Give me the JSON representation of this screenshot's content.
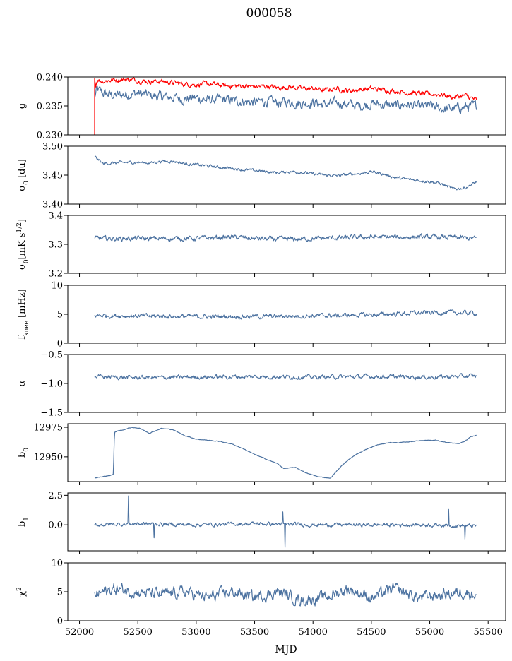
{
  "title": "000058",
  "colors": {
    "main": "#4c72a0",
    "secondary": "#ff0000"
  },
  "chart_data": {
    "type": "line",
    "title": "000058",
    "xlabel": "MJD",
    "xlim": [
      51900,
      55650
    ],
    "xticks": [
      52000,
      52500,
      53000,
      53500,
      54000,
      54500,
      55000,
      55500
    ],
    "xtick_labels": [
      "52000",
      "52500",
      "53000",
      "53500",
      "54000",
      "54500",
      "55000",
      "55500"
    ],
    "x_start": 52130,
    "x_end": 55400,
    "panels": [
      {
        "ylabel": "g",
        "ylim": [
          0.23,
          0.24
        ],
        "yticks": [
          0.23,
          0.235,
          0.24
        ],
        "ytick_labels": [
          "0.230",
          "0.235",
          "0.240"
        ],
        "series": [
          {
            "color": "#4c72a0",
            "x": [
              52130,
              52150,
              52200,
              52300,
              52400,
              52500,
              52600,
              52700,
              52800,
              52900,
              53000,
              53100,
              53200,
              53300,
              53400,
              53500,
              53600,
              53700,
              53800,
              53900,
              54000,
              54100,
              54200,
              54300,
              54400,
              54500,
              54600,
              54700,
              54800,
              54900,
              55000,
              55100,
              55200,
              55300,
              55400
            ],
            "y": [
              0.2365,
              0.2378,
              0.2372,
              0.2368,
              0.237,
              0.2372,
              0.2368,
              0.2366,
              0.2365,
              0.2362,
              0.2364,
              0.236,
              0.2361,
              0.2359,
              0.2358,
              0.2356,
              0.2358,
              0.2355,
              0.2357,
              0.2354,
              0.2356,
              0.2352,
              0.2355,
              0.2353,
              0.235,
              0.2354,
              0.2352,
              0.235,
              0.2353,
              0.2348,
              0.235,
              0.2345,
              0.2345,
              0.2348,
              0.235
            ],
            "noise": 0.0012
          },
          {
            "color": "#ff0000",
            "x": [
              52130,
              52140,
              52150,
              52200,
              52300,
              52400,
              52500,
              52600,
              52700,
              52800,
              52900,
              53000,
              53100,
              53200,
              53300,
              53400,
              53500,
              53600,
              53700,
              53800,
              53900,
              54000,
              54100,
              54200,
              54300,
              54400,
              54500,
              54600,
              54700,
              54800,
              54900,
              55000,
              55100,
              55200,
              55300,
              55400
            ],
            "y": [
              0.2395,
              0.2385,
              0.2395,
              0.2393,
              0.2395,
              0.2396,
              0.2394,
              0.2392,
              0.2393,
              0.239,
              0.2388,
              0.2387,
              0.2388,
              0.2386,
              0.2384,
              0.2385,
              0.2383,
              0.2384,
              0.2381,
              0.2383,
              0.238,
              0.238,
              0.2377,
              0.238,
              0.2376,
              0.2378,
              0.238,
              0.2378,
              0.2376,
              0.2373,
              0.2372,
              0.237,
              0.237,
              0.2365,
              0.2368,
              0.236
            ],
            "noise": 0.0006
          }
        ]
      },
      {
        "ylabel": "σ0 [du]",
        "ylim": [
          3.4,
          3.5
        ],
        "yticks": [
          3.4,
          3.45,
          3.5
        ],
        "ytick_labels": [
          "3.40",
          "3.45",
          "3.50"
        ],
        "series": [
          {
            "color": "#4c72a0",
            "x": [
              52130,
              52200,
              52300,
              52400,
              52500,
              52600,
              52700,
              52800,
              52900,
              53000,
              53100,
              53200,
              53300,
              53400,
              53500,
              53600,
              53700,
              53800,
              53900,
              54000,
              54100,
              54200,
              54300,
              54400,
              54500,
              54600,
              54700,
              54800,
              54900,
              55000,
              55100,
              55200,
              55300,
              55400
            ],
            "y": [
              3.482,
              3.47,
              3.471,
              3.472,
              3.472,
              3.471,
              3.474,
              3.474,
              3.47,
              3.468,
              3.466,
              3.463,
              3.462,
              3.459,
              3.458,
              3.456,
              3.454,
              3.456,
              3.455,
              3.452,
              3.45,
              3.449,
              3.451,
              3.453,
              3.456,
              3.452,
              3.446,
              3.443,
              3.441,
              3.439,
              3.435,
              3.426,
              3.428,
              3.438
            ],
            "noise": 0.0035
          }
        ]
      },
      {
        "ylabel": "σ0[mK s^1/2]",
        "ylim": [
          3.2,
          3.4
        ],
        "yticks": [
          3.2,
          3.3,
          3.4
        ],
        "ytick_labels": [
          "3.2",
          "3.3",
          "3.4"
        ],
        "series": [
          {
            "color": "#4c72a0",
            "x": [
              52130,
              52400,
              52700,
              53000,
              53300,
              53600,
              53900,
              54200,
              54500,
              54800,
              55100,
              55400
            ],
            "y": [
              3.32,
              3.32,
              3.32,
              3.32,
              3.325,
              3.318,
              3.318,
              3.322,
              3.325,
              3.325,
              3.325,
              3.32
            ],
            "noise": 0.012
          }
        ]
      },
      {
        "ylabel": "f_knee [mHz]",
        "ylim": [
          0,
          10
        ],
        "yticks": [
          0,
          5,
          10
        ],
        "ytick_labels": [
          "0",
          "5",
          "10"
        ],
        "series": [
          {
            "color": "#4c72a0",
            "x": [
              52130,
              52500,
              53000,
              53500,
              54000,
              54500,
              55000,
              55400
            ],
            "y": [
              4.8,
              4.7,
              4.6,
              4.6,
              4.7,
              4.9,
              5.3,
              5.2
            ],
            "noise": 0.55
          }
        ]
      },
      {
        "ylabel": "α",
        "ylim": [
          -1.5,
          -0.5
        ],
        "yticks": [
          -1.5,
          -1.0,
          -0.5
        ],
        "ytick_labels": [
          "−1.5",
          "−1.0",
          "−0.5"
        ],
        "series": [
          {
            "color": "#4c72a0",
            "x": [
              52130,
              52500,
              53000,
              53500,
              54000,
              54500,
              55000,
              55400
            ],
            "y": [
              -0.88,
              -0.9,
              -0.89,
              -0.88,
              -0.89,
              -0.88,
              -0.89,
              -0.87
            ],
            "noise": 0.05
          }
        ]
      },
      {
        "ylabel": "b0",
        "ylim": [
          12929,
          12978
        ],
        "yticks": [
          12950,
          12975
        ],
        "ytick_labels": [
          "12950",
          "12975"
        ],
        "series": [
          {
            "color": "#4c72a0",
            "x": [
              52130,
              52180,
              52250,
              52290,
              52300,
              52380,
              52450,
              52520,
              52600,
              52700,
              52800,
              52900,
              53000,
              53100,
              53200,
              53300,
              53400,
              53500,
              53600,
              53700,
              53750,
              53850,
              53950,
              54050,
              54150,
              54250,
              54350,
              54450,
              54550,
              54650,
              54750,
              54850,
              54950,
              55050,
              55150,
              55250,
              55300,
              55350,
              55400
            ],
            "y": [
              12932,
              12933,
              12934,
              12935,
              12971,
              12973,
              12975,
              12974,
              12970,
              12974,
              12973,
              12968,
              12965,
              12964,
              12963,
              12961,
              12957,
              12952,
              12948,
              12944,
              12940,
              12941,
              12936,
              12933,
              12932,
              12943,
              12951,
              12956,
              12960,
              12962,
              12962,
              12963,
              12964,
              12964,
              12962,
              12961,
              12963,
              12967,
              12968
            ],
            "noise": 0.35
          }
        ]
      },
      {
        "ylabel": "b1",
        "ylim": [
          -2.2,
          2.7
        ],
        "yticks": [
          0.0,
          2.5
        ],
        "ytick_labels": [
          "0.0",
          "2.5"
        ],
        "series": [
          {
            "color": "#4c72a0",
            "x": [
              52130,
              52500,
              53000,
              53500,
              54000,
              54500,
              55000,
              55400
            ],
            "y": [
              0.0,
              0.1,
              0.0,
              0.1,
              0.0,
              0.0,
              0.0,
              -0.1
            ],
            "noise": 0.22,
            "spikes": [
              {
                "x": 52420,
                "y": 2.45
              },
              {
                "x": 52640,
                "y": -1.1
              },
              {
                "x": 53760,
                "y": -1.9
              },
              {
                "x": 53740,
                "y": 1.1
              },
              {
                "x": 55300,
                "y": -1.2
              },
              {
                "x": 55160,
                "y": 1.3
              }
            ]
          }
        ]
      },
      {
        "ylabel": "χ2",
        "ylim": [
          0,
          10
        ],
        "yticks": [
          0,
          5,
          10
        ],
        "ytick_labels": [
          "0",
          "5",
          "10"
        ],
        "series": [
          {
            "color": "#4c72a0",
            "x": [
              52130,
              52300,
              52500,
              52700,
              52900,
              53100,
              53300,
              53500,
              53700,
              53900,
              54100,
              54300,
              54500,
              54700,
              54900,
              55100,
              55300,
              55400
            ],
            "y": [
              4.5,
              5.5,
              5.0,
              4.5,
              5.0,
              4.0,
              5.0,
              4.0,
              5.0,
              3.5,
              4.0,
              5.5,
              4.0,
              5.5,
              4.0,
              4.5,
              5.0,
              4.5
            ],
            "noise": 1.4
          }
        ]
      }
    ]
  }
}
